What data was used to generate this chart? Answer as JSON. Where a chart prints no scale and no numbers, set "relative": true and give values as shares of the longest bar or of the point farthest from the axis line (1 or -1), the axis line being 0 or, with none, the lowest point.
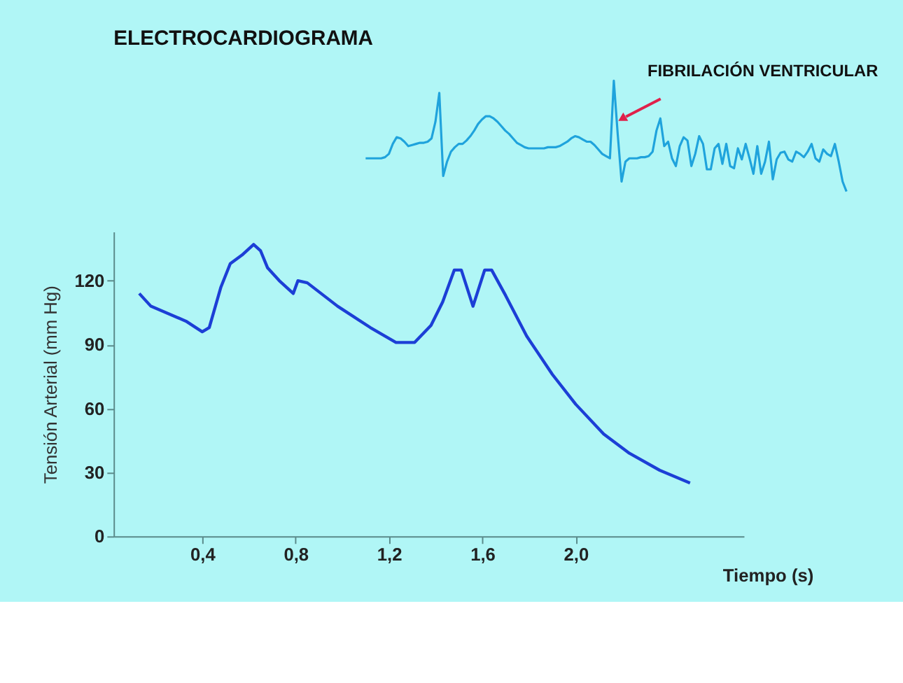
{
  "chart_data": [
    {
      "type": "line",
      "title": "ELECTROCARDIOGRAMA",
      "relative": true,
      "annotations": [
        "FIBRILACIÓN VENTRICULAR"
      ],
      "categories": [
        null,
        null,
        null,
        null,
        null,
        null,
        null,
        null,
        null,
        null,
        null,
        null,
        null,
        null,
        null,
        null,
        null,
        null,
        null,
        null,
        null,
        null,
        null,
        null,
        null,
        null,
        null,
        null,
        null,
        null,
        null,
        null,
        null,
        null,
        null,
        null,
        null,
        null,
        null,
        null,
        null,
        null,
        null,
        null,
        null,
        null,
        null,
        null,
        null,
        null,
        null,
        null,
        null,
        null,
        null,
        null,
        null,
        null,
        null,
        null,
        null,
        null,
        null,
        null,
        null,
        null,
        null,
        null,
        null,
        null,
        null,
        null,
        null,
        null,
        null,
        null,
        null,
        null,
        null,
        null,
        null,
        null,
        null,
        null,
        null,
        null,
        null,
        null,
        null,
        null,
        null,
        null,
        null,
        null,
        null,
        null,
        null,
        null,
        null,
        null,
        null,
        null,
        null,
        null,
        null,
        null,
        null,
        null,
        null,
        null,
        null,
        null,
        null,
        null,
        null,
        null,
        null,
        null,
        null,
        null,
        null,
        null,
        null,
        null,
        null
      ],
      "series": [
        {
          "color": "#1fa3dc",
          "values": [
            0.3,
            0.3,
            0.3,
            0.3,
            0.3,
            0.31,
            0.34,
            0.43,
            0.49,
            0.48,
            0.45,
            0.41,
            0.42,
            0.43,
            0.44,
            0.44,
            0.45,
            0.48,
            0.63,
            0.89,
            0.14,
            0.27,
            0.36,
            0.4,
            0.43,
            0.43,
            0.46,
            0.5,
            0.55,
            0.61,
            0.65,
            0.68,
            0.68,
            0.66,
            0.63,
            0.59,
            0.55,
            0.52,
            0.48,
            0.44,
            0.42,
            0.4,
            0.39,
            0.39,
            0.39,
            0.39,
            0.39,
            0.4,
            0.4,
            0.4,
            0.41,
            0.43,
            0.45,
            0.48,
            0.5,
            0.49,
            0.47,
            0.45,
            0.45,
            0.42,
            0.38,
            0.34,
            0.32,
            0.3,
            1.0,
            0.52,
            0.09,
            0.27,
            0.3,
            0.3,
            0.3,
            0.31,
            0.31,
            0.32,
            0.36,
            0.55,
            0.66,
            0.41,
            0.45,
            0.3,
            0.23,
            0.41,
            0.49,
            0.46,
            0.23,
            0.34,
            0.5,
            0.43,
            0.2,
            0.2,
            0.39,
            0.43,
            0.25,
            0.43,
            0.23,
            0.21,
            0.39,
            0.29,
            0.43,
            0.3,
            0.16,
            0.41,
            0.16,
            0.27,
            0.45,
            0.11,
            0.29,
            0.35,
            0.36,
            0.29,
            0.27,
            0.36,
            0.34,
            0.31,
            0.36,
            0.43,
            0.3,
            0.27,
            0.38,
            0.34,
            0.32,
            0.43,
            0.27,
            0.09,
            0.0
          ]
        }
      ]
    },
    {
      "type": "line",
      "ylabel": "Tensión Arterial (mm Hg)",
      "xlabel": "Tiempo (s)",
      "xlim": [
        0.02,
        2.72
      ],
      "ylim": [
        0,
        143
      ],
      "xticks": [
        {
          "value": 0.4,
          "label": "0,4"
        },
        {
          "value": 0.8,
          "label": "0,8"
        },
        {
          "value": 1.2,
          "label": "1,2"
        },
        {
          "value": 1.6,
          "label": "1,6"
        },
        {
          "value": 2.0,
          "label": "2,0"
        }
      ],
      "yticks": [
        0,
        30,
        60,
        90,
        120
      ],
      "grid": false,
      "series": [
        {
          "color": "#1c3fd6",
          "x": [
            0.13,
            0.18,
            0.33,
            0.4,
            0.43,
            0.48,
            0.52,
            0.57,
            0.62,
            0.65,
            0.68,
            0.73,
            0.79,
            0.81,
            0.85,
            0.98,
            1.12,
            1.23,
            1.31,
            1.38,
            1.43,
            1.48,
            1.51,
            1.56,
            1.61,
            1.64,
            1.7,
            1.79,
            1.9,
            2.0,
            2.12,
            2.23,
            2.36,
            2.49
          ],
          "values": [
            114,
            108,
            101,
            96,
            98,
            117,
            128,
            132,
            137,
            134,
            126,
            120,
            114,
            120,
            119,
            108,
            98,
            91,
            91,
            99,
            110,
            125,
            125,
            108,
            125,
            125,
            113,
            94,
            76,
            62,
            48,
            39,
            31,
            25
          ]
        }
      ]
    }
  ]
}
